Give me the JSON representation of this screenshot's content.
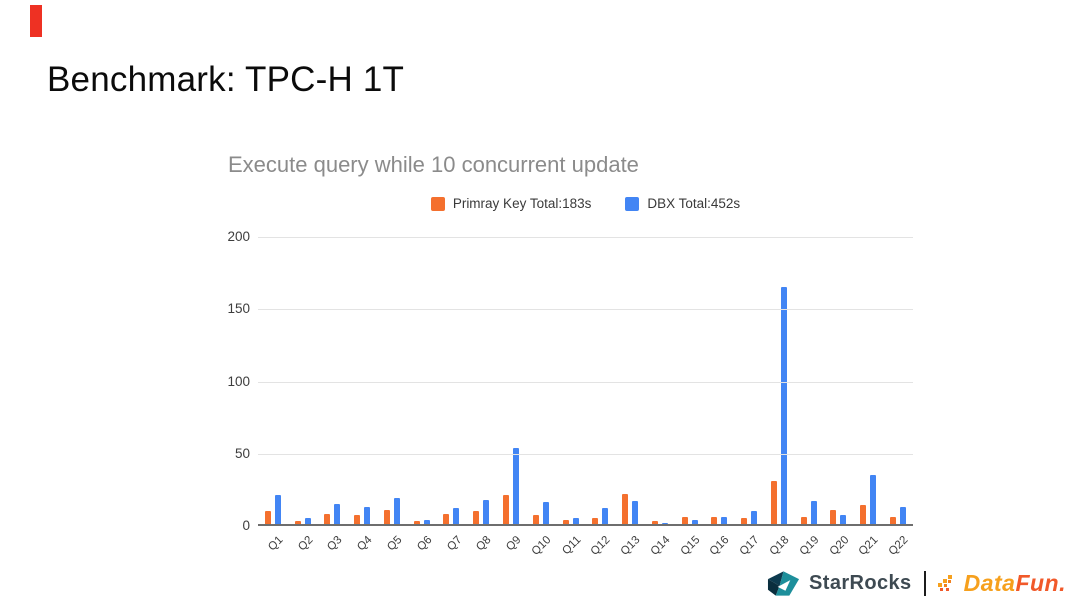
{
  "slide": {
    "title": "Benchmark: TPC-H 1T"
  },
  "chart_data": {
    "type": "bar",
    "title": "Execute query while 10 concurrent update",
    "categories": [
      "Q1",
      "Q2",
      "Q3",
      "Q4",
      "Q5",
      "Q6",
      "Q7",
      "Q8",
      "Q9",
      "Q10",
      "Q11",
      "Q12",
      "Q13",
      "Q14",
      "Q15",
      "Q16",
      "Q17",
      "Q18",
      "Q19",
      "Q20",
      "Q21",
      "Q22"
    ],
    "series": [
      {
        "name": "Primray Key Total:183s",
        "color": "#f4702e",
        "values": [
          9,
          2,
          7,
          6,
          10,
          2,
          7,
          9,
          20,
          6,
          3,
          4,
          21,
          2,
          5,
          5,
          4,
          30,
          5,
          10,
          13,
          5
        ]
      },
      {
        "name": "DBX Total:452s",
        "color": "#4285f4",
        "values": [
          20,
          4,
          14,
          12,
          18,
          3,
          11,
          17,
          53,
          15,
          4,
          11,
          16,
          1,
          3,
          5,
          9,
          165,
          16,
          6,
          34,
          12
        ]
      }
    ],
    "xlabel": "",
    "ylabel": "",
    "ylim": [
      0,
      200
    ],
    "yticks": [
      0,
      50,
      100,
      150,
      200
    ],
    "grid": true,
    "legend_position": "top",
    "title_color": "#8b8b8b"
  },
  "footer": {
    "starrocks": "StarRocks",
    "datafun_data": "Data",
    "datafun_fun": "Fun."
  }
}
